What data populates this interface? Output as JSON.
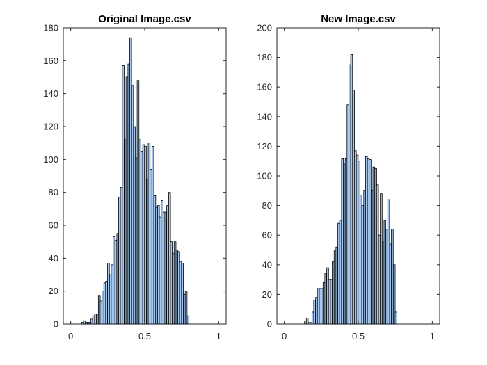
{
  "chart_data": [
    {
      "type": "bar",
      "title": "Original Image.csv",
      "xlabel": "",
      "ylabel": "",
      "xlim": [
        -0.05,
        1.05
      ],
      "ylim": [
        0,
        180
      ],
      "xticks": [
        "0",
        "0.5",
        "1"
      ],
      "yticks": [
        "0",
        "20",
        "40",
        "60",
        "80",
        "100",
        "120",
        "140",
        "160",
        "180"
      ],
      "bar_color": "#a6c8ee",
      "edge_color": "#000000",
      "grid": false,
      "bin_width": 0.0125,
      "bin_centers": [
        0.08,
        0.093,
        0.105,
        0.118,
        0.13,
        0.142,
        0.155,
        0.168,
        0.18,
        0.193,
        0.205,
        0.218,
        0.23,
        0.242,
        0.255,
        0.268,
        0.28,
        0.293,
        0.305,
        0.318,
        0.33,
        0.342,
        0.355,
        0.368,
        0.38,
        0.393,
        0.405,
        0.418,
        0.43,
        0.442,
        0.455,
        0.468,
        0.48,
        0.493,
        0.505,
        0.518,
        0.53,
        0.542,
        0.555,
        0.568,
        0.58,
        0.593,
        0.605,
        0.618,
        0.63,
        0.642,
        0.655,
        0.668,
        0.68,
        0.693,
        0.705,
        0.718,
        0.73,
        0.742,
        0.755,
        0.768,
        0.78,
        0.793
      ],
      "values": [
        1,
        2,
        1,
        1,
        1,
        3,
        5,
        6,
        6,
        17,
        14,
        20,
        25,
        26,
        37,
        30,
        36,
        53,
        51,
        55,
        77,
        83,
        157,
        112,
        150,
        158,
        174,
        145,
        120,
        101,
        148,
        112,
        105,
        109,
        108,
        88,
        110,
        94,
        108,
        78,
        71,
        72,
        65,
        75,
        68,
        68,
        72,
        80,
        50,
        43,
        50,
        45,
        44,
        38,
        37,
        18,
        20,
        5
      ]
    },
    {
      "type": "bar",
      "title": "New Image.csv",
      "xlabel": "",
      "ylabel": "",
      "xlim": [
        -0.05,
        1.05
      ],
      "ylim": [
        0,
        200
      ],
      "xticks": [
        "0",
        "0.5",
        "1"
      ],
      "yticks": [
        "0",
        "20",
        "40",
        "60",
        "80",
        "100",
        "120",
        "140",
        "160",
        "180",
        "200"
      ],
      "bar_color": "#a6c8ee",
      "edge_color": "#000000",
      "grid": false,
      "bin_width": 0.0125,
      "bin_centers": [
        0.143,
        0.155,
        0.168,
        0.18,
        0.193,
        0.205,
        0.218,
        0.23,
        0.243,
        0.255,
        0.268,
        0.28,
        0.293,
        0.305,
        0.318,
        0.33,
        0.343,
        0.355,
        0.368,
        0.38,
        0.393,
        0.405,
        0.418,
        0.43,
        0.443,
        0.455,
        0.468,
        0.48,
        0.493,
        0.505,
        0.518,
        0.53,
        0.543,
        0.555,
        0.568,
        0.58,
        0.593,
        0.605,
        0.618,
        0.63,
        0.643,
        0.655,
        0.668,
        0.68,
        0.693,
        0.705,
        0.718,
        0.73,
        0.743,
        0.755
      ],
      "values": [
        2,
        4,
        1,
        1,
        8,
        16,
        18,
        24,
        24,
        24,
        28,
        34,
        38,
        30,
        30,
        42,
        50,
        52,
        68,
        70,
        112,
        108,
        112,
        148,
        175,
        182,
        158,
        117,
        114,
        110,
        87,
        80,
        90,
        113,
        112,
        111,
        90,
        106,
        105,
        94,
        60,
        88,
        56,
        70,
        64,
        84,
        54,
        64,
        40,
        8
      ]
    }
  ]
}
